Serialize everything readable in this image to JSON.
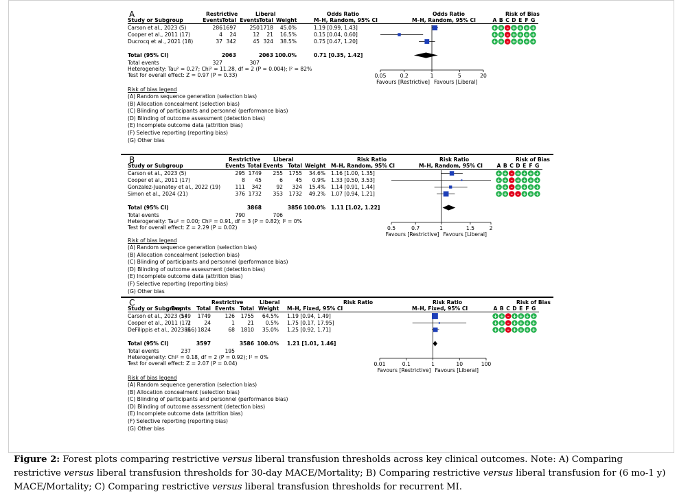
{
  "panels": [
    {
      "letter": "A",
      "top": 14,
      "group1": "Restrictive",
      "group2": "Liberal",
      "col_study": "Study or Subgroup",
      "col_events": "Events",
      "col_total": "Total",
      "col_weight": "Weight",
      "effect_header": "Odds Ratio",
      "effect_sub": "M–H, Random, 95% CI",
      "plot_header": "Odds Ratio",
      "plot_sub": "M–H, Random, 95% CI",
      "rob_header": "Risk of Bias",
      "rob_letters": [
        "A",
        "B",
        "C",
        "D",
        "E",
        "F",
        "G"
      ],
      "studies": [
        {
          "name": "Carson et al., 2023 (5)",
          "e1": "286",
          "n1": "1697",
          "e2": "250",
          "n2": "1718",
          "weight": "45.0%",
          "ci": "1.19 [0.99, 1.43]",
          "est": 1.19,
          "lo": 0.99,
          "hi": 1.43,
          "w": 45.0,
          "rob": [
            "g",
            "g",
            "r",
            "g",
            "g",
            "g",
            "g"
          ]
        },
        {
          "name": "Cooper et al., 2011 (17)",
          "e1": "4",
          "n1": "24",
          "e2": "12",
          "n2": "21",
          "weight": "16.5%",
          "ci": "0.15 [0.04, 0.60]",
          "est": 0.15,
          "lo": 0.04,
          "hi": 0.6,
          "w": 16.5,
          "rob": [
            "g",
            "g",
            "r",
            "g",
            "g",
            "g",
            "g"
          ]
        },
        {
          "name": "Ducrocq et al., 2021 (18)",
          "e1": "37",
          "n1": "342",
          "e2": "45",
          "n2": "324",
          "weight": "38.5%",
          "ci": "0.75 [0.47, 1.20]",
          "est": 0.75,
          "lo": 0.47,
          "hi": 1.2,
          "w": 38.5,
          "rob": [
            "g",
            "g",
            "r",
            "g",
            "g",
            "g",
            "g"
          ]
        }
      ],
      "total_label": "Total (95% CI)",
      "total_n1": "2063",
      "total_n2": "2063",
      "total_weight": "100.0%",
      "total_ci": "0.71 [0.35, 1.42]",
      "total_est": 0.71,
      "total_lo": 0.35,
      "total_hi": 1.42,
      "total_events_label": "Total events",
      "total_e1": "327",
      "total_e2": "307",
      "heterogeneity": "Heterogeneity: Tau² = 0.27; Chi² = 11.28, df = 2 (P = 0.004); I² = 82%",
      "overall": "Test for overall effect: Z = 0.97 (P = 0.33)",
      "axis_ticks": [
        {
          "v": 0.05,
          "label": "0.05"
        },
        {
          "v": 0.2,
          "label": "0.2"
        },
        {
          "v": 1,
          "label": "1"
        },
        {
          "v": 5,
          "label": "5"
        },
        {
          "v": 20,
          "label": "20"
        }
      ],
      "axis_range": [
        0.05,
        20
      ],
      "favours_left": "Favours [Restrictive]",
      "favours_right": "Favours [Liberal]",
      "legend_title": "Risk of bias legend",
      "legend": [
        "(A) Random sequence generation (selection bias)",
        "(B) Allocation concealment (selection bias)",
        "(C) Blinding of participants and personnel (performance bias)",
        "(D) Blinding of outcome assessment (detection bias)",
        "(E) Incomplete outcome data (attrition bias)",
        "(F) Selective reporting (reporting bias)",
        "(G) Other bias"
      ]
    },
    {
      "letter": "B",
      "top": 226,
      "group1": "Restrictive",
      "group2": "Liberal",
      "col_study": "Study or Subgroup",
      "col_events": "Events",
      "col_total": "Total",
      "col_weight": "Weight",
      "effect_header": "Risk Ratio",
      "effect_sub": "M–H, Random, 95% CI",
      "plot_header": "Risk Ratio",
      "plot_sub": "M–H, Random, 95% CI",
      "rob_header": "Risk of Bias",
      "rob_letters": [
        "A",
        "B",
        "C",
        "D",
        "E",
        "F",
        "G"
      ],
      "studies": [
        {
          "name": "Carson et al., 2023 (5)",
          "e1": "295",
          "n1": "1749",
          "e2": "255",
          "n2": "1755",
          "weight": "34.6%",
          "ci": "1.16 [1.00, 1.35]",
          "est": 1.16,
          "lo": 1.0,
          "hi": 1.35,
          "w": 34.6,
          "rob": [
            "g",
            "g",
            "r",
            "g",
            "g",
            "g",
            "g"
          ]
        },
        {
          "name": "Cooper et al., 2011 (17)",
          "e1": "8",
          "n1": "45",
          "e2": "6",
          "n2": "45",
          "weight": "0.9%",
          "ci": "1.33 [0.50, 3.53]",
          "est": 1.33,
          "lo": 0.5,
          "hi": 3.53,
          "w": 0.9,
          "rob": [
            "g",
            "g",
            "r",
            "g",
            "g",
            "g",
            "g"
          ]
        },
        {
          "name": "Gonzalez-Juanatey et al., 2022 (19)",
          "e1": "111",
          "n1": "342",
          "e2": "92",
          "n2": "324",
          "weight": "15.4%",
          "ci": "1.14 [0.91, 1.44]",
          "est": 1.14,
          "lo": 0.91,
          "hi": 1.44,
          "w": 15.4,
          "rob": [
            "g",
            "g",
            "r",
            "g",
            "g",
            "g",
            "g"
          ]
        },
        {
          "name": "Simon et al., 2024 (21)",
          "e1": "376",
          "n1": "1732",
          "e2": "353",
          "n2": "1732",
          "weight": "49.2%",
          "ci": "1.07 [0.94, 1.21]",
          "est": 1.07,
          "lo": 0.94,
          "hi": 1.21,
          "w": 49.2,
          "rob": [
            "g",
            "g",
            "r",
            "r",
            "g",
            "g",
            "g"
          ]
        }
      ],
      "total_label": "Total (95% CI)",
      "total_n1": "3868",
      "total_n2": "3856",
      "total_weight": "100.0%",
      "total_ci": "1.11 [1.02, 1.22]",
      "total_est": 1.11,
      "total_lo": 1.02,
      "total_hi": 1.22,
      "total_events_label": "Total events",
      "total_e1": "790",
      "total_e2": "706",
      "heterogeneity": "Heterogeneity: Tau² = 0.00; Chi² = 0.91, df = 3 (P = 0.82); I² = 0%",
      "overall": "Test for overall effect: Z = 2.29 (P = 0.02)",
      "axis_ticks": [
        {
          "v": 0.5,
          "label": "0.5"
        },
        {
          "v": 0.7,
          "label": "0.7"
        },
        {
          "v": 1,
          "label": "1"
        },
        {
          "v": 1.5,
          "label": "1.5"
        },
        {
          "v": 2,
          "label": "2"
        }
      ],
      "axis_range": [
        0.5,
        2
      ],
      "favours_left": "Favours [Restrictive]",
      "favours_right": "Favours [Liberal]",
      "legend_title": "Risk of bias legend",
      "legend": [
        "(A) Random sequence generation (selection bias)",
        "(B) Allocation concealment (selection bias)",
        "(C) Blinding of participants and personnel (performance bias)",
        "(D) Blinding of outcome assessment (detection bias)",
        "(E) Incomplete outcome data (attrition bias)",
        "(F) Selective reporting (reporting bias)",
        "(G) Other bias"
      ]
    },
    {
      "letter": "C",
      "top": 434,
      "group1": "Restrictive",
      "group2": "Liberal",
      "col_study": "Study or Subgroup",
      "col_events": "Events",
      "col_total": "Total",
      "col_weight": "Weight",
      "effect_header": "Risk Ratio",
      "effect_sub": "M–H, Fixed, 95% CI",
      "plot_header": "Risk Ratio",
      "plot_sub": "M–H, Fixed, 95% CI",
      "rob_header": "Risk of Bias",
      "rob_letters": [
        "A",
        "B",
        "C",
        "D",
        "E",
        "F",
        "G"
      ],
      "studies": [
        {
          "name": "Carson et al., 2023 (5)",
          "e1": "149",
          "n1": "1749",
          "e2": "126",
          "n2": "1755",
          "weight": "64.5%",
          "ci": "1.19 [0.94, 1.49]",
          "est": 1.19,
          "lo": 0.94,
          "hi": 1.49,
          "w": 64.5,
          "rob": [
            "g",
            "g",
            "r",
            "g",
            "g",
            "g",
            "g"
          ]
        },
        {
          "name": "Cooper et al., 2011 (17)",
          "e1": "2",
          "n1": "24",
          "e2": "1",
          "n2": "21",
          "weight": "0.5%",
          "ci": "1.75 [0.17, 17.95]",
          "est": 1.75,
          "lo": 0.17,
          "hi": 17.95,
          "w": 0.5,
          "rob": [
            "g",
            "g",
            "r",
            "g",
            "g",
            "g",
            "g"
          ]
        },
        {
          "name": "DeFilippis et al., 2023 (16)",
          "e1": "86",
          "n1": "1824",
          "e2": "68",
          "n2": "1810",
          "weight": "35.0%",
          "ci": "1.25 [0.92, 1.71]",
          "est": 1.25,
          "lo": 0.92,
          "hi": 1.71,
          "w": 35.0,
          "rob": [
            "g",
            "g",
            "r",
            "g",
            "g",
            "g",
            "g"
          ]
        }
      ],
      "total_label": "Total (95% CI)",
      "total_n1": "3597",
      "total_n2": "3586",
      "total_weight": "100.0%",
      "total_ci": "1.21 [1.01, 1.46]",
      "total_est": 1.21,
      "total_lo": 1.01,
      "total_hi": 1.46,
      "total_events_label": "Total events",
      "total_e1": "237",
      "total_e2": "195",
      "heterogeneity": "Heterogeneity: Chi² = 0.18, df = 2 (P = 0.92); I² = 0%",
      "overall": "Test for overall effect: Z = 2.07 (P = 0.04)",
      "axis_ticks": [
        {
          "v": 0.01,
          "label": "0.01"
        },
        {
          "v": 0.1,
          "label": "0.1"
        },
        {
          "v": 1,
          "label": "1"
        },
        {
          "v": 10,
          "label": "10"
        },
        {
          "v": 100,
          "label": "100"
        }
      ],
      "axis_range": [
        0.01,
        100
      ],
      "favours_left": "Favours [Restrictive]",
      "favours_right": "Favours [Liberal]",
      "legend_title": "Risk of bias legend",
      "legend": [
        "(A) Random sequence generation (selection bias)",
        "(B) Allocation concealment (selection bias)",
        "(C) Blinding of participants and personnel (performance bias)",
        "(D) Blinding of outcome assessment (detection bias)",
        "(E) Incomplete outcome data (attrition bias)",
        "(F) Selective reporting (reporting bias)",
        "(G) Other bias"
      ]
    }
  ],
  "caption": {
    "label": "Figure 2:",
    "text_1": " Forest plots comparing restrictive ",
    "versus_1": "versus",
    "text_2": " liberal transfusion thresholds across key clinical outcomes. Note: A) Comparing restrictive ",
    "versus_2": "versus",
    "text_3": " liberal transfusion thresholds for 30-day MACE/Mortality; B) Comparing restrictive ",
    "versus_3": "versus",
    "text_4": " liberal transfusion for (6 mo-1 y) MACE/Mortality; C) Comparing restrictive ",
    "versus_4": "versus",
    "text_5": " liberal transfusion thresholds for recurrent MI."
  },
  "colors": {
    "green": "#22b14c",
    "red": "#e0001b",
    "marker": "#1d3fb8",
    "black": "#000000"
  }
}
